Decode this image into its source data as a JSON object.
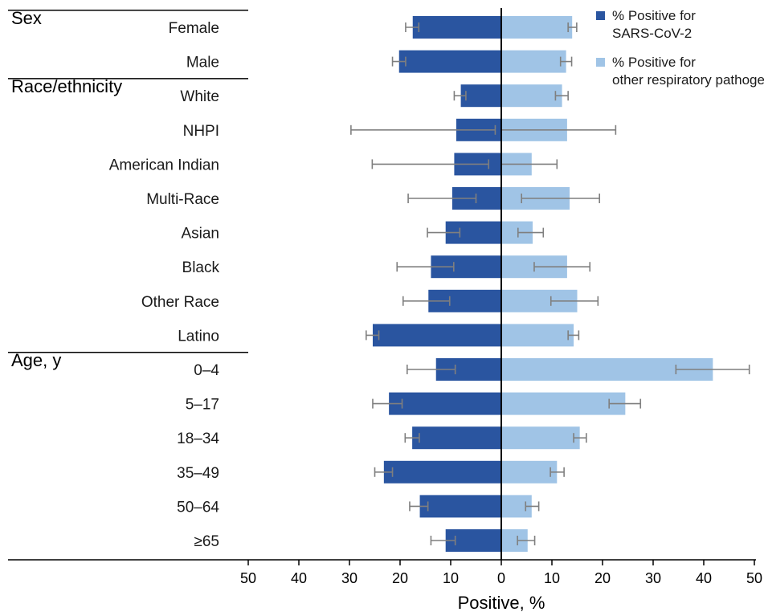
{
  "chart_data": {
    "type": "bar",
    "orientation": "horizontal-diverging",
    "xlabel": "Positive, %",
    "xlim": [
      -50,
      50
    ],
    "x_ticks": [
      "50",
      "40",
      "30",
      "20",
      "10",
      "0",
      "10",
      "20",
      "30",
      "40",
      "50"
    ],
    "x_tick_values": [
      -50,
      -40,
      -30,
      -20,
      -10,
      0,
      10,
      20,
      30,
      40,
      50
    ],
    "legend_position": "top-right",
    "colors": {
      "sars": "#2a55a0",
      "other": "#a0c4e6",
      "error": "#7f7f7f",
      "axis": "#000000"
    },
    "groups": [
      {
        "label": "Sex",
        "categories": [
          "Female",
          "Male"
        ]
      },
      {
        "label": "Race/ethnicity",
        "categories": [
          "White",
          "NHPI",
          "American Indian",
          "Multi-Race",
          "Asian",
          "Black",
          "Other Race",
          "Latino"
        ]
      },
      {
        "label": "Age, y",
        "categories": [
          "0–4",
          "5–17",
          "18–34",
          "35–49",
          "50–64",
          "≥65"
        ]
      }
    ],
    "categories": [
      "Female",
      "Male",
      "White",
      "NHPI",
      "American Indian",
      "Multi-Race",
      "Asian",
      "Black",
      "Other Race",
      "Latino",
      "0–4",
      "5–17",
      "18–34",
      "35–49",
      "50–64",
      "≥65"
    ],
    "series": [
      {
        "name": "% Positive for SARS-CoV-2",
        "side": "left",
        "values": [
          17.5,
          20.2,
          8.0,
          8.9,
          9.3,
          9.7,
          11.0,
          13.9,
          14.4,
          25.4,
          12.9,
          22.2,
          17.6,
          23.2,
          16.1,
          11.0
        ],
        "ci_low": [
          16.3,
          18.9,
          7.0,
          1.2,
          2.5,
          5.0,
          8.2,
          9.4,
          10.2,
          24.2,
          9.1,
          19.6,
          16.2,
          21.5,
          14.5,
          9.1
        ],
        "ci_high": [
          18.9,
          21.5,
          9.3,
          29.7,
          25.5,
          18.4,
          14.6,
          20.6,
          19.4,
          26.7,
          18.6,
          25.4,
          19.0,
          25.0,
          18.1,
          13.9
        ]
      },
      {
        "name": "% Positive for other respiratory pathogen",
        "side": "right",
        "values": [
          14.0,
          12.8,
          12.0,
          13.0,
          6.0,
          13.5,
          6.2,
          13.0,
          15.0,
          14.3,
          41.8,
          24.5,
          15.5,
          11.0,
          6.0,
          5.2
        ],
        "ci_low": [
          13.2,
          11.7,
          10.7,
          0.0,
          0.0,
          4.0,
          3.3,
          6.5,
          9.8,
          13.2,
          34.5,
          21.3,
          14.3,
          9.7,
          4.8,
          3.2
        ],
        "ci_high": [
          14.9,
          13.9,
          13.2,
          22.6,
          11.0,
          19.4,
          8.3,
          17.5,
          19.1,
          15.3,
          49.0,
          27.5,
          16.8,
          12.4,
          7.4,
          6.6
        ]
      }
    ]
  }
}
